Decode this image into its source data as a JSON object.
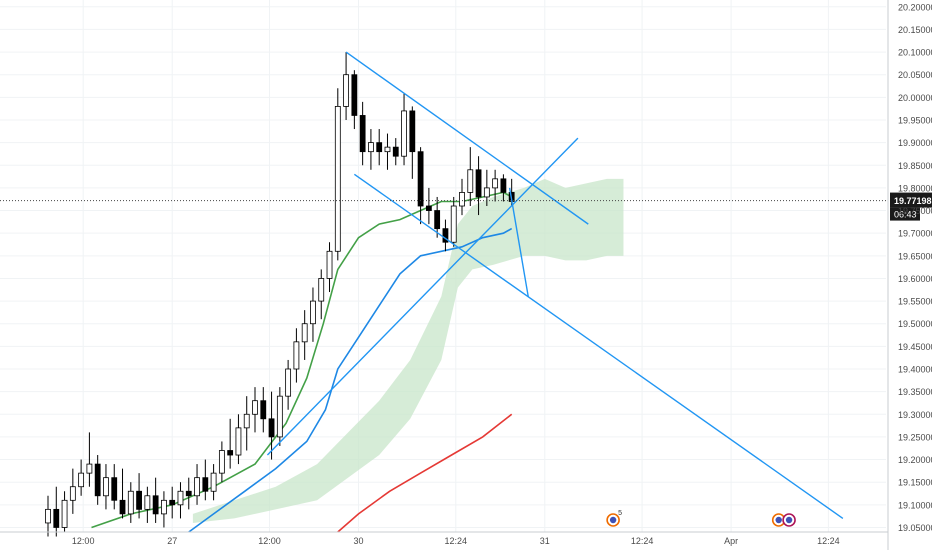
{
  "chart_data": {
    "type": "candlestick",
    "title": "",
    "price_scale": {
      "ticks": [
        "20.20000",
        "20.15000",
        "20.10000",
        "20.05000",
        "20.00000",
        "19.95000",
        "19.90000",
        "19.85000",
        "19.80000",
        "19.75000",
        "19.70000",
        "19.65000",
        "19.60000",
        "19.55000",
        "19.50000",
        "19.45000",
        "19.40000",
        "19.35000",
        "19.30000",
        "19.25000",
        "19.20000",
        "19.15000",
        "19.10000",
        "19.05000"
      ],
      "ylim": [
        19.04,
        20.215
      ]
    },
    "time_scale": {
      "ticks": [
        {
          "label": "12:00",
          "x": 1.7
        },
        {
          "label": "27",
          "x": 6.0
        },
        {
          "label": "12:00",
          "x": 10.7
        },
        {
          "label": "30",
          "x": 15.0
        },
        {
          "label": "12:24",
          "x": 19.7
        },
        {
          "label": "31",
          "x": 24.0
        },
        {
          "label": "12:24",
          "x": 28.7
        },
        {
          "label": "Apr",
          "x": 33.0
        },
        {
          "label": "12:24",
          "x": 37.7
        }
      ],
      "xlim": [
        0,
        40.0
      ]
    },
    "last_price": {
      "label": "19.77198",
      "value": 19.77198,
      "countdown": "06:43"
    },
    "candles": [
      [
        0.0,
        19.06,
        19.12,
        19.03,
        19.09
      ],
      [
        0.4,
        19.09,
        19.14,
        19.03,
        19.05
      ],
      [
        0.8,
        19.05,
        19.13,
        19.04,
        19.11
      ],
      [
        1.2,
        19.11,
        19.18,
        19.08,
        19.14
      ],
      [
        1.6,
        19.14,
        19.2,
        19.12,
        19.17
      ],
      [
        2.0,
        19.17,
        19.26,
        19.14,
        19.19
      ],
      [
        2.4,
        19.19,
        19.21,
        19.1,
        19.12
      ],
      [
        2.8,
        19.12,
        19.19,
        19.09,
        19.16
      ],
      [
        3.2,
        19.16,
        19.19,
        19.09,
        19.11
      ],
      [
        3.6,
        19.11,
        19.18,
        19.07,
        19.08
      ],
      [
        4.0,
        19.08,
        19.15,
        19.06,
        19.13
      ],
      [
        4.4,
        19.13,
        19.17,
        19.07,
        19.09
      ],
      [
        4.8,
        19.09,
        19.14,
        19.06,
        19.12
      ],
      [
        5.2,
        19.12,
        19.16,
        19.06,
        19.08
      ],
      [
        5.6,
        19.08,
        19.13,
        19.05,
        19.11
      ],
      [
        6.0,
        19.11,
        19.14,
        19.07,
        19.1
      ],
      [
        6.4,
        19.1,
        19.15,
        19.07,
        19.13
      ],
      [
        6.8,
        19.13,
        19.16,
        19.09,
        19.12
      ],
      [
        7.2,
        19.12,
        19.19,
        19.1,
        19.16
      ],
      [
        7.6,
        19.16,
        19.2,
        19.11,
        19.13
      ],
      [
        8.0,
        19.13,
        19.19,
        19.11,
        19.17
      ],
      [
        8.4,
        19.17,
        19.24,
        19.15,
        19.22
      ],
      [
        8.8,
        19.22,
        19.29,
        19.18,
        19.21
      ],
      [
        9.2,
        19.21,
        19.3,
        19.19,
        19.27
      ],
      [
        9.6,
        19.27,
        19.34,
        19.22,
        19.3
      ],
      [
        10.0,
        19.3,
        19.36,
        19.26,
        19.33
      ],
      [
        10.4,
        19.33,
        19.36,
        19.26,
        19.29
      ],
      [
        10.8,
        19.29,
        19.35,
        19.2,
        19.25
      ],
      [
        11.2,
        19.25,
        19.36,
        19.23,
        19.34
      ],
      [
        11.6,
        19.34,
        19.42,
        19.31,
        19.4
      ],
      [
        12.0,
        19.4,
        19.49,
        19.37,
        19.46
      ],
      [
        12.4,
        19.46,
        19.53,
        19.42,
        19.5
      ],
      [
        12.8,
        19.5,
        19.58,
        19.46,
        19.55
      ],
      [
        13.2,
        19.55,
        19.62,
        19.51,
        19.6
      ],
      [
        13.6,
        19.6,
        19.68,
        19.57,
        19.66
      ],
      [
        14.0,
        19.66,
        20.02,
        19.64,
        19.98
      ],
      [
        14.4,
        19.98,
        20.1,
        19.95,
        20.05
      ],
      [
        14.8,
        20.05,
        20.06,
        19.93,
        19.96
      ],
      [
        15.2,
        19.96,
        19.99,
        19.85,
        19.88
      ],
      [
        15.6,
        19.88,
        19.93,
        19.84,
        19.9
      ],
      [
        16.0,
        19.9,
        19.93,
        19.85,
        19.88
      ],
      [
        16.4,
        19.88,
        19.92,
        19.84,
        19.89
      ],
      [
        16.8,
        19.89,
        19.91,
        19.85,
        19.87
      ],
      [
        17.2,
        19.87,
        20.01,
        19.85,
        19.97
      ],
      [
        17.6,
        19.97,
        19.98,
        19.82,
        19.88
      ],
      [
        18.0,
        19.88,
        19.89,
        19.72,
        19.76
      ],
      [
        18.4,
        19.76,
        19.8,
        19.72,
        19.75
      ],
      [
        18.8,
        19.75,
        19.78,
        19.69,
        19.71
      ],
      [
        19.2,
        19.71,
        19.73,
        19.66,
        19.68
      ],
      [
        19.6,
        19.68,
        19.78,
        19.67,
        19.76
      ],
      [
        20.0,
        19.76,
        19.82,
        19.74,
        19.79
      ],
      [
        20.4,
        19.79,
        19.89,
        19.76,
        19.84
      ],
      [
        20.8,
        19.84,
        19.87,
        19.74,
        19.78
      ],
      [
        21.2,
        19.78,
        19.84,
        19.76,
        19.8
      ],
      [
        21.6,
        19.8,
        19.84,
        19.77,
        19.82
      ],
      [
        22.0,
        19.82,
        19.83,
        19.77,
        19.79
      ],
      [
        22.4,
        19.79,
        19.82,
        19.76,
        19.77
      ]
    ],
    "channel_lines": [
      {
        "points": [
          [
            14.4,
            20.1
          ],
          [
            26.1,
            19.72
          ]
        ],
        "color": "#2196f3"
      },
      {
        "points": [
          [
            14.8,
            19.83
          ],
          [
            38.4,
            19.07
          ]
        ],
        "color": "#2196f3"
      },
      {
        "points": [
          [
            10.6,
            19.21
          ],
          [
            25.6,
            19.91
          ]
        ],
        "color": "#2196f3"
      },
      {
        "points": [
          [
            22.3,
            19.8
          ],
          [
            23.2,
            19.56
          ]
        ],
        "color": "#2196f3"
      }
    ],
    "moving_averages": [
      {
        "color": "#43a047",
        "values": [
          [
            2.1,
            19.05
          ],
          [
            4.0,
            19.08
          ],
          [
            6.0,
            19.1
          ],
          [
            8.0,
            19.14
          ],
          [
            10.0,
            19.19
          ],
          [
            11.5,
            19.28
          ],
          [
            12.5,
            19.38
          ],
          [
            13.3,
            19.5
          ],
          [
            14.0,
            19.62
          ],
          [
            15.0,
            19.69
          ],
          [
            16.0,
            19.72
          ],
          [
            17.0,
            19.73
          ],
          [
            18.0,
            19.75
          ],
          [
            19.0,
            19.77
          ],
          [
            20.0,
            19.77
          ],
          [
            21.0,
            19.78
          ],
          [
            22.0,
            19.79
          ],
          [
            22.4,
            19.78
          ]
        ]
      },
      {
        "color": "#1e88e5",
        "values": [
          [
            6.8,
            19.04
          ],
          [
            8.0,
            19.08
          ],
          [
            9.5,
            19.13
          ],
          [
            11.0,
            19.18
          ],
          [
            12.5,
            19.24
          ],
          [
            13.4,
            19.31
          ],
          [
            14.0,
            19.4
          ],
          [
            15.0,
            19.47
          ],
          [
            16.0,
            19.54
          ],
          [
            17.0,
            19.61
          ],
          [
            18.0,
            19.65
          ],
          [
            19.0,
            19.66
          ],
          [
            20.0,
            19.67
          ],
          [
            21.0,
            19.69
          ],
          [
            22.0,
            19.7
          ],
          [
            22.4,
            19.71
          ]
        ]
      },
      {
        "color": "#e53935",
        "values": [
          [
            14.0,
            19.04
          ],
          [
            15.0,
            19.08
          ],
          [
            16.5,
            19.13
          ],
          [
            18.0,
            19.17
          ],
          [
            19.5,
            19.21
          ],
          [
            21.0,
            19.25
          ],
          [
            22.4,
            19.3
          ]
        ]
      }
    ],
    "ichimoku_cloud": {
      "color": "#c8e6c9",
      "upper": [
        [
          7.0,
          19.08
        ],
        [
          9.0,
          19.11
        ],
        [
          11.0,
          19.14
        ],
        [
          13.0,
          19.19
        ],
        [
          14.5,
          19.26
        ],
        [
          16.0,
          19.33
        ],
        [
          17.5,
          19.42
        ],
        [
          19.0,
          19.56
        ],
        [
          19.8,
          19.72
        ],
        [
          20.5,
          19.76
        ],
        [
          21.5,
          19.78
        ],
        [
          23.0,
          19.8
        ],
        [
          24.0,
          19.82
        ],
        [
          25.0,
          19.8
        ],
        [
          26.0,
          19.81
        ],
        [
          27.0,
          19.82
        ],
        [
          27.8,
          19.82
        ]
      ],
      "lower": [
        [
          7.0,
          19.06
        ],
        [
          9.0,
          19.07
        ],
        [
          11.0,
          19.09
        ],
        [
          13.0,
          19.11
        ],
        [
          14.5,
          19.16
        ],
        [
          16.0,
          19.21
        ],
        [
          17.5,
          19.29
        ],
        [
          19.0,
          19.42
        ],
        [
          19.8,
          19.58
        ],
        [
          20.5,
          19.62
        ],
        [
          21.5,
          19.63
        ],
        [
          23.0,
          19.65
        ],
        [
          24.0,
          19.65
        ],
        [
          25.0,
          19.64
        ],
        [
          26.0,
          19.64
        ],
        [
          27.0,
          19.65
        ],
        [
          27.8,
          19.65
        ]
      ]
    },
    "event_markers": [
      {
        "x": 27.3,
        "color": "#ef6c00",
        "badge": "5"
      },
      {
        "x": 35.3,
        "color": "#ef6c00",
        "badge": ""
      },
      {
        "x": 35.8,
        "color": "#ad1457",
        "badge": ""
      }
    ],
    "colors": {
      "bull": "#ffffff",
      "bear": "#000000",
      "grid": "#f0f3f5",
      "axis_text": "#4a4a4a",
      "price_line": "#444444",
      "label_bg": "#1a1a1a"
    }
  }
}
